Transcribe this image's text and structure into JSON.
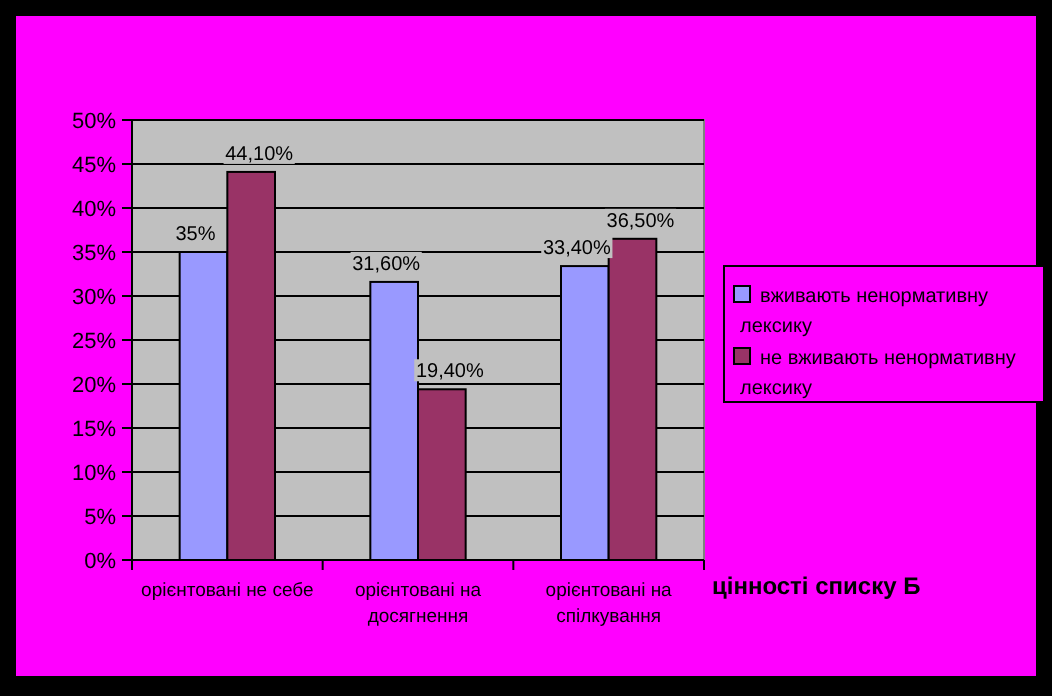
{
  "chart_data": {
    "type": "bar",
    "xlabel": "цінності списку Б",
    "categories": [
      "орієнтовані не себе",
      "орієнтовані на досягнення",
      "орієнтовані на спілкування"
    ],
    "series": [
      {
        "name": "вживають ненормативну лексику",
        "color": "#9999ff",
        "values": [
          35,
          31.6,
          33.4
        ],
        "value_labels": [
          "35%",
          "31,60%",
          "33,40%"
        ]
      },
      {
        "name": "не вживають ненормативну лексику",
        "color": "#993366",
        "values": [
          44.1,
          19.4,
          36.5
        ],
        "value_labels": [
          "44,10%",
          "19,40%",
          "36,50%"
        ]
      }
    ],
    "ylim": [
      0,
      50
    ],
    "yticks": [
      {
        "value": 0,
        "label": "0%"
      },
      {
        "value": 5,
        "label": "5%"
      },
      {
        "value": 10,
        "label": "10%"
      },
      {
        "value": 15,
        "label": "15%"
      },
      {
        "value": 20,
        "label": "20%"
      },
      {
        "value": 25,
        "label": "25%"
      },
      {
        "value": 30,
        "label": "30%"
      },
      {
        "value": 35,
        "label": "35%"
      },
      {
        "value": 40,
        "label": "40%"
      },
      {
        "value": 45,
        "label": "45%"
      },
      {
        "value": 50,
        "label": "50%"
      }
    ],
    "grid": "y",
    "legend": "right"
  }
}
